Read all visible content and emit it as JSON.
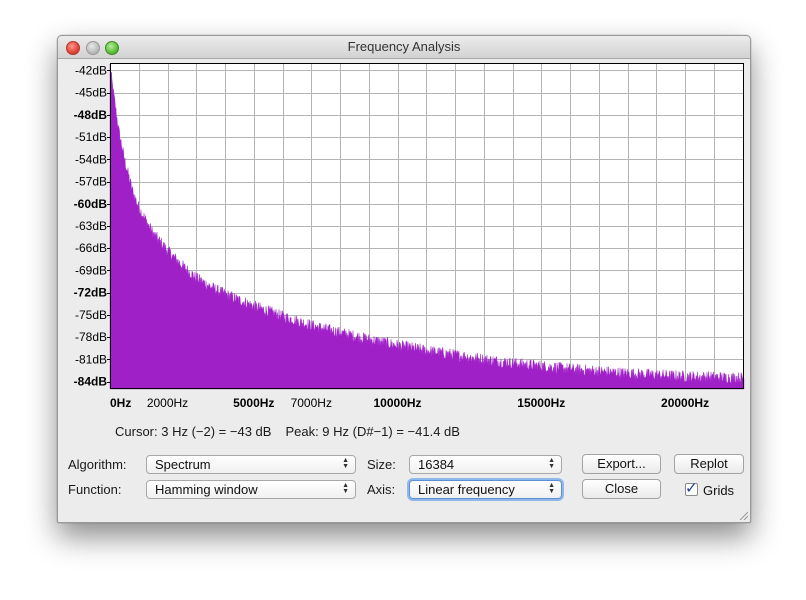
{
  "window": {
    "title": "Frequency Analysis"
  },
  "chart_data": {
    "type": "area",
    "xlabel": "",
    "ylabel": "",
    "x_unit": "Hz",
    "y_unit": "dB",
    "xlim": [
      0,
      22050
    ],
    "ylim": [
      -85,
      -41
    ],
    "grid": true,
    "color": "#a020c8",
    "y_ticks": [
      {
        "label": "-42dB",
        "value": -42,
        "bold": false
      },
      {
        "label": "-45dB",
        "value": -45,
        "bold": false
      },
      {
        "label": "-48dB",
        "value": -48,
        "bold": true
      },
      {
        "label": "-51dB",
        "value": -51,
        "bold": false
      },
      {
        "label": "-54dB",
        "value": -54,
        "bold": false
      },
      {
        "label": "-57dB",
        "value": -57,
        "bold": false
      },
      {
        "label": "-60dB",
        "value": -60,
        "bold": true
      },
      {
        "label": "-63dB",
        "value": -63,
        "bold": false
      },
      {
        "label": "-66dB",
        "value": -66,
        "bold": false
      },
      {
        "label": "-69dB",
        "value": -69,
        "bold": false
      },
      {
        "label": "-72dB",
        "value": -72,
        "bold": true
      },
      {
        "label": "-75dB",
        "value": -75,
        "bold": false
      },
      {
        "label": "-78dB",
        "value": -78,
        "bold": false
      },
      {
        "label": "-81dB",
        "value": -81,
        "bold": false
      },
      {
        "label": "-84dB",
        "value": -84,
        "bold": true
      }
    ],
    "x_ticks": [
      {
        "label": "0Hz",
        "value": 0,
        "bold": true
      },
      {
        "label": "2000Hz",
        "value": 2000,
        "bold": false
      },
      {
        "label": "5000Hz",
        "value": 5000,
        "bold": true
      },
      {
        "label": "7000Hz",
        "value": 7000,
        "bold": false
      },
      {
        "label": "10000Hz",
        "value": 10000,
        "bold": true
      },
      {
        "label": "15000Hz",
        "value": 15000,
        "bold": true
      },
      {
        "label": "20000Hz",
        "value": 20000,
        "bold": true
      }
    ],
    "x_gridlines": [
      0,
      1000,
      2000,
      3000,
      4000,
      5000,
      6000,
      7000,
      8000,
      9000,
      10000,
      11000,
      12000,
      13000,
      14000,
      15000,
      16000,
      17000,
      18000,
      19000,
      20000,
      21000,
      22000
    ],
    "series": [
      {
        "x": [
          0,
          100,
          300,
          500,
          800,
          1000,
          1500,
          2000,
          2500,
          3000,
          3500,
          4000,
          5000,
          6000,
          7000,
          8000,
          9000,
          10000,
          11000,
          12000,
          13000,
          14000,
          15000,
          16000,
          17000,
          18000,
          19000,
          20000,
          21000,
          22050
        ],
        "y": [
          -41.4,
          -44.5,
          -50,
          -54,
          -58.5,
          -60.5,
          -64,
          -66.3,
          -68.3,
          -70,
          -71.2,
          -72.2,
          -73.8,
          -75.2,
          -76.4,
          -77.4,
          -78.3,
          -79.1,
          -79.8,
          -80.4,
          -81,
          -81.5,
          -81.9,
          -82.3,
          -82.6,
          -82.9,
          -83.1,
          -83.3,
          -83.4,
          -83.5
        ]
      }
    ]
  },
  "status": {
    "cursor": "Cursor: 3 Hz (−2) = −43 dB",
    "peak": "Peak: 9 Hz (D#−1) = −41.4 dB"
  },
  "controls": {
    "algorithm_label": "Algorithm:",
    "algorithm_value": "Spectrum",
    "function_label": "Function:",
    "function_value": "Hamming window",
    "size_label": "Size:",
    "size_value": "16384",
    "axis_label": "Axis:",
    "axis_value": "Linear frequency",
    "export_label": "Export...",
    "replot_label": "Replot",
    "close_label": "Close",
    "grids_label": "Grids",
    "grids_checked": true
  }
}
